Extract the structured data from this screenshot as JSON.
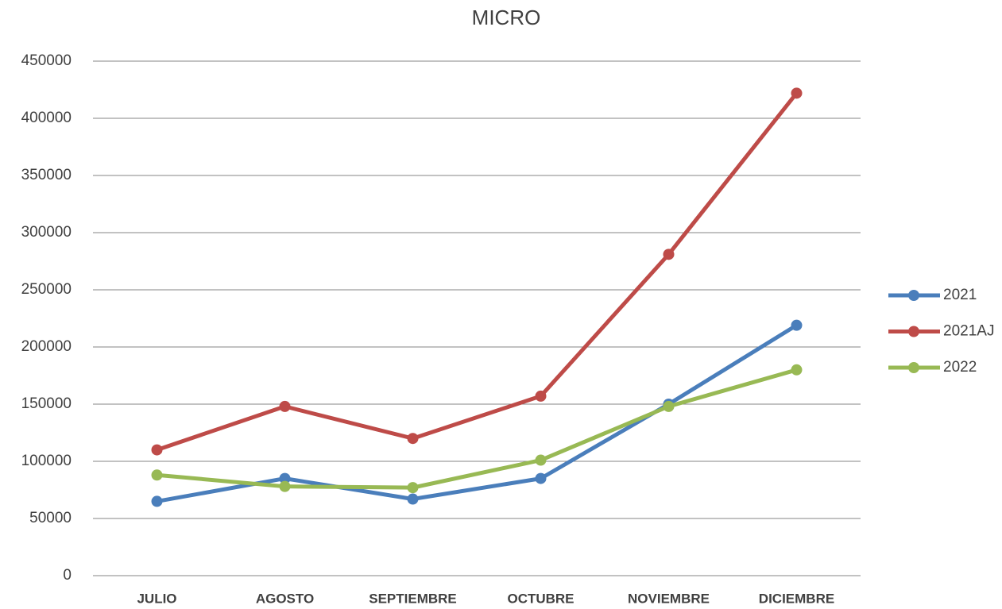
{
  "chart_data": {
    "type": "line",
    "title": "MICRO",
    "categories": [
      "JULIO",
      "AGOSTO",
      "SEPTIEMBRE",
      "OCTUBRE",
      "NOVIEMBRE",
      "DICIEMBRE"
    ],
    "series": [
      {
        "name": "2021",
        "color": "#4a7ebb",
        "values": [
          65000,
          85000,
          67000,
          85000,
          150000,
          219000
        ]
      },
      {
        "name": "2021AJ",
        "color": "#be4b48",
        "values": [
          110000,
          148000,
          120000,
          157000,
          281000,
          422000
        ]
      },
      {
        "name": "2022",
        "color": "#98b954",
        "values": [
          88000,
          78000,
          77000,
          101000,
          148000,
          180000
        ]
      }
    ],
    "ylim": [
      0,
      450000
    ],
    "yticks": [
      0,
      50000,
      100000,
      150000,
      200000,
      250000,
      300000,
      350000,
      400000,
      450000
    ],
    "grid": true,
    "legend": "right"
  }
}
